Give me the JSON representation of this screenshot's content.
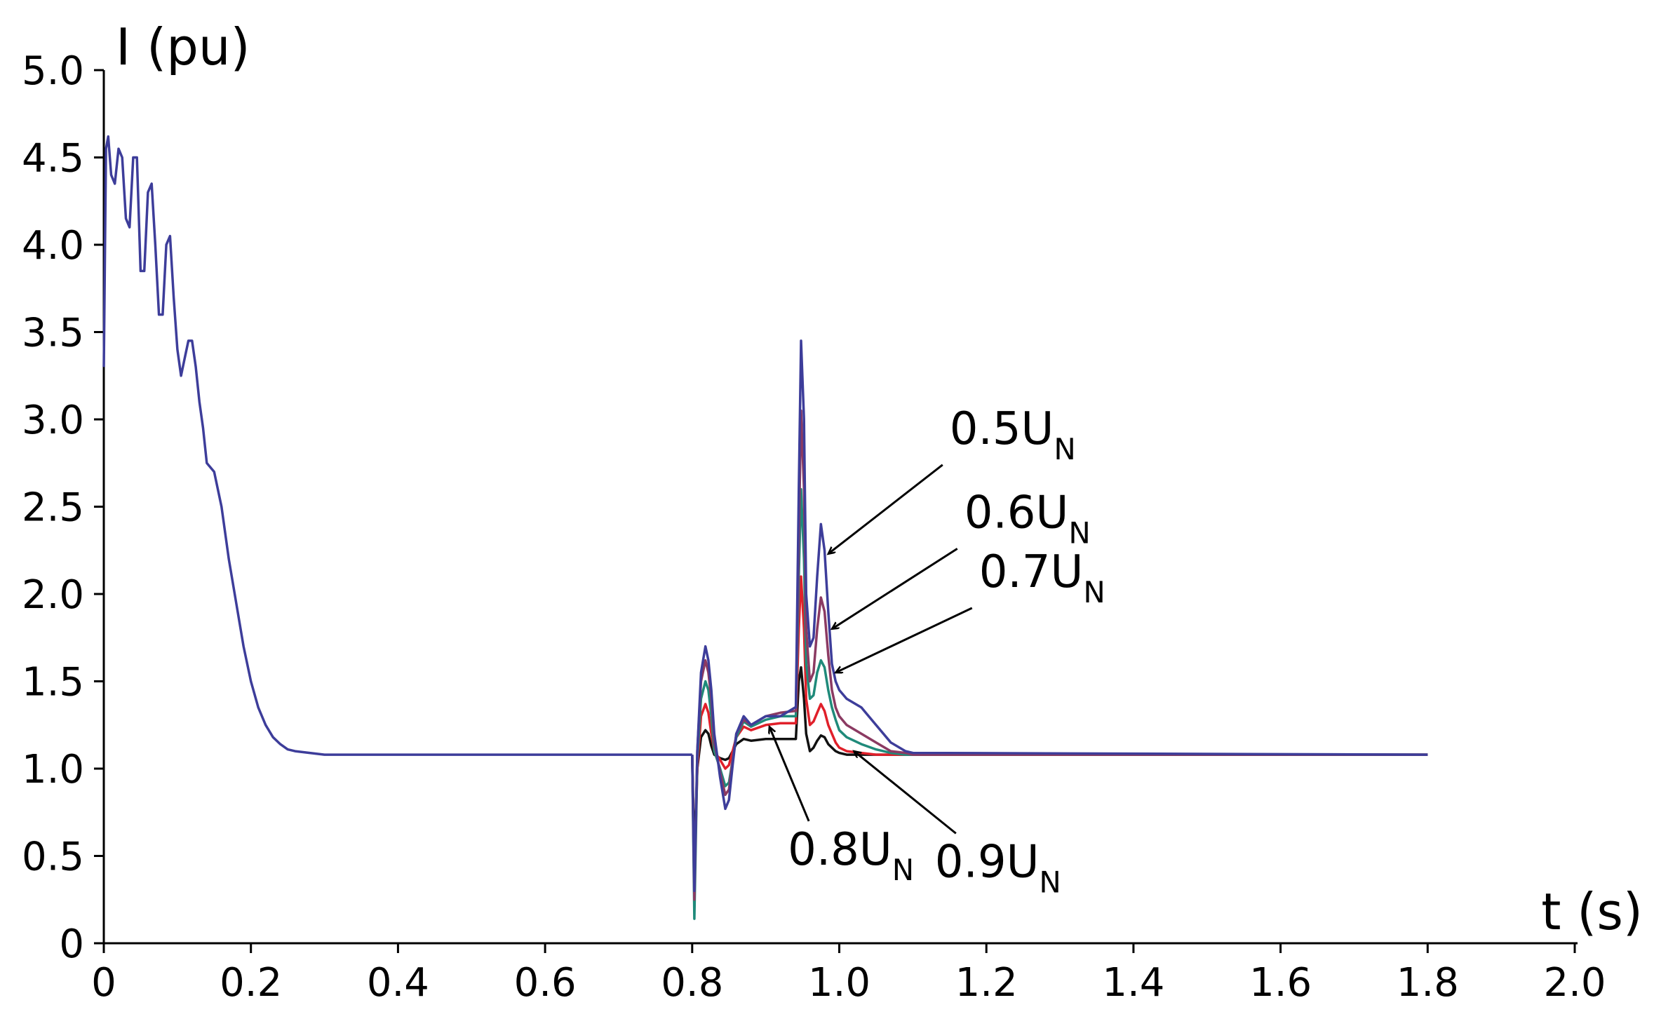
{
  "chart_data": {
    "type": "line",
    "xlabel": "t (s)",
    "ylabel": "I (pu)",
    "xlim": [
      0,
      2.0
    ],
    "ylim": [
      0,
      5.0
    ],
    "x_ticks": [
      "0",
      "0.2",
      "0.4",
      "0.6",
      "0.8",
      "1.0",
      "1.2",
      "1.4",
      "1.6",
      "1.8",
      "2.0"
    ],
    "y_ticks": [
      "0",
      "0.5",
      "1.0",
      "1.5",
      "2.0",
      "2.5",
      "3.0",
      "3.5",
      "4.0",
      "4.5",
      "5.0"
    ],
    "grid": false,
    "shared_start": {
      "x": [
        0.0,
        0.003,
        0.006,
        0.01,
        0.015,
        0.02,
        0.025,
        0.03,
        0.035,
        0.04,
        0.045,
        0.05,
        0.055,
        0.06,
        0.065,
        0.07,
        0.075,
        0.08,
        0.085,
        0.09,
        0.095,
        0.1,
        0.105,
        0.11,
        0.115,
        0.12,
        0.125,
        0.13,
        0.135,
        0.14,
        0.15,
        0.16,
        0.17,
        0.18,
        0.19,
        0.2,
        0.21,
        0.22,
        0.23,
        0.24,
        0.25,
        0.26,
        0.28,
        0.3,
        0.32,
        0.8
      ],
      "y": [
        3.3,
        4.55,
        4.62,
        4.4,
        4.35,
        4.55,
        4.5,
        4.15,
        4.1,
        4.5,
        4.5,
        3.85,
        3.85,
        4.3,
        4.35,
        4.0,
        3.6,
        3.6,
        4.0,
        4.05,
        3.7,
        3.4,
        3.25,
        3.35,
        3.45,
        3.45,
        3.3,
        3.1,
        2.95,
        2.75,
        2.7,
        2.5,
        2.2,
        1.95,
        1.7,
        1.5,
        1.35,
        1.25,
        1.18,
        1.14,
        1.11,
        1.1,
        1.09,
        1.08,
        1.08,
        1.08
      ]
    },
    "series": [
      {
        "label": "0.5U_N",
        "color": "#3d3d9a",
        "x": [
          0.8,
          0.803,
          0.807,
          0.812,
          0.818,
          0.822,
          0.826,
          0.83,
          0.838,
          0.845,
          0.85,
          0.855,
          0.86,
          0.87,
          0.88,
          0.9,
          0.92,
          0.94,
          0.941,
          0.945,
          0.948,
          0.952,
          0.955,
          0.96,
          0.965,
          0.97,
          0.975,
          0.98,
          0.985,
          0.99,
          0.995,
          1.0,
          1.01,
          1.03,
          1.05,
          1.07,
          1.09,
          1.1,
          1.8
        ],
        "y": [
          1.08,
          0.3,
          1.1,
          1.55,
          1.7,
          1.62,
          1.45,
          1.2,
          0.95,
          0.77,
          0.82,
          1.02,
          1.2,
          1.3,
          1.25,
          1.3,
          1.3,
          1.35,
          1.35,
          2.6,
          3.45,
          3.0,
          2.0,
          1.7,
          1.75,
          2.1,
          2.4,
          2.25,
          1.9,
          1.6,
          1.5,
          1.45,
          1.4,
          1.35,
          1.25,
          1.15,
          1.1,
          1.09,
          1.08
        ]
      },
      {
        "label": "0.6U_N",
        "color": "#8b3a62",
        "x": [
          0.8,
          0.803,
          0.807,
          0.812,
          0.818,
          0.822,
          0.826,
          0.83,
          0.838,
          0.845,
          0.85,
          0.855,
          0.86,
          0.87,
          0.88,
          0.9,
          0.92,
          0.94,
          0.941,
          0.945,
          0.948,
          0.952,
          0.955,
          0.96,
          0.965,
          0.97,
          0.975,
          0.98,
          0.985,
          0.99,
          0.995,
          1.0,
          1.01,
          1.03,
          1.05,
          1.07,
          1.09,
          1.1,
          1.8
        ],
        "y": [
          1.08,
          0.25,
          1.1,
          1.5,
          1.62,
          1.55,
          1.4,
          1.15,
          0.98,
          0.85,
          0.88,
          1.05,
          1.2,
          1.28,
          1.25,
          1.3,
          1.32,
          1.33,
          1.33,
          2.3,
          3.05,
          2.6,
          1.8,
          1.5,
          1.55,
          1.8,
          1.98,
          1.9,
          1.65,
          1.45,
          1.35,
          1.3,
          1.25,
          1.2,
          1.15,
          1.1,
          1.09,
          1.08,
          1.08
        ]
      },
      {
        "label": "0.7U_N",
        "color": "#1f8a7a",
        "x": [
          0.8,
          0.803,
          0.807,
          0.812,
          0.818,
          0.822,
          0.826,
          0.83,
          0.838,
          0.845,
          0.85,
          0.855,
          0.86,
          0.87,
          0.88,
          0.9,
          0.92,
          0.94,
          0.941,
          0.945,
          0.948,
          0.952,
          0.955,
          0.96,
          0.965,
          0.97,
          0.975,
          0.98,
          0.985,
          0.99,
          0.995,
          1.0,
          1.01,
          1.03,
          1.05,
          1.07,
          1.09,
          1.1,
          1.8
        ],
        "y": [
          1.08,
          0.14,
          1.05,
          1.4,
          1.5,
          1.45,
          1.3,
          1.1,
          1.0,
          0.9,
          0.92,
          1.05,
          1.18,
          1.27,
          1.24,
          1.28,
          1.3,
          1.3,
          1.3,
          2.1,
          2.6,
          2.2,
          1.6,
          1.4,
          1.42,
          1.55,
          1.62,
          1.58,
          1.45,
          1.35,
          1.28,
          1.22,
          1.18,
          1.14,
          1.11,
          1.09,
          1.08,
          1.08,
          1.08
        ]
      },
      {
        "label": "0.8U_N",
        "color": "#e0202a",
        "x": [
          0.8,
          0.803,
          0.807,
          0.812,
          0.818,
          0.822,
          0.826,
          0.83,
          0.838,
          0.845,
          0.85,
          0.855,
          0.86,
          0.87,
          0.88,
          0.9,
          0.92,
          0.94,
          0.941,
          0.945,
          0.948,
          0.952,
          0.955,
          0.96,
          0.965,
          0.97,
          0.975,
          0.98,
          0.985,
          0.99,
          0.995,
          1.0,
          1.01,
          1.03,
          1.05,
          1.07,
          1.09,
          1.1,
          1.8
        ],
        "y": [
          1.08,
          0.35,
          1.0,
          1.3,
          1.37,
          1.32,
          1.2,
          1.1,
          1.05,
          1.0,
          1.02,
          1.1,
          1.18,
          1.24,
          1.22,
          1.25,
          1.26,
          1.26,
          1.26,
          1.8,
          2.1,
          1.8,
          1.4,
          1.25,
          1.27,
          1.32,
          1.37,
          1.33,
          1.25,
          1.2,
          1.15,
          1.12,
          1.1,
          1.09,
          1.08,
          1.08,
          1.08,
          1.08,
          1.08
        ]
      },
      {
        "label": "0.9U_N",
        "color": "#111111",
        "x": [
          0.8,
          0.803,
          0.807,
          0.812,
          0.818,
          0.822,
          0.826,
          0.83,
          0.838,
          0.845,
          0.85,
          0.855,
          0.86,
          0.87,
          0.88,
          0.9,
          0.92,
          0.94,
          0.941,
          0.945,
          0.948,
          0.952,
          0.955,
          0.96,
          0.965,
          0.97,
          0.975,
          0.98,
          0.985,
          0.99,
          0.995,
          1.0,
          1.01,
          1.03,
          1.05,
          1.07,
          1.09,
          1.1,
          1.8
        ],
        "y": [
          1.08,
          0.5,
          1.0,
          1.18,
          1.22,
          1.2,
          1.13,
          1.08,
          1.06,
          1.05,
          1.06,
          1.1,
          1.14,
          1.17,
          1.16,
          1.17,
          1.17,
          1.17,
          1.17,
          1.5,
          1.58,
          1.4,
          1.2,
          1.1,
          1.12,
          1.16,
          1.19,
          1.18,
          1.14,
          1.12,
          1.1,
          1.09,
          1.08,
          1.08,
          1.08,
          1.08,
          1.08,
          1.08,
          1.08
        ]
      }
    ],
    "annotations": [
      {
        "main": "0.5U",
        "sub": "N",
        "x": 1.15,
        "y": 2.86,
        "arrow_to_x": 0.985,
        "arrow_to_y": 2.23
      },
      {
        "main": "0.6U",
        "sub": "N",
        "x": 1.17,
        "y": 2.38,
        "arrow_to_x": 0.99,
        "arrow_to_y": 1.8
      },
      {
        "main": "0.7U",
        "sub": "N",
        "x": 1.19,
        "y": 2.04,
        "arrow_to_x": 0.995,
        "arrow_to_y": 1.55
      },
      {
        "main": "0.8U",
        "sub": "N",
        "x": 0.93,
        "y": 0.45,
        "arrow_to_x": 0.905,
        "arrow_to_y": 1.24
      },
      {
        "main": "0.9U",
        "sub": "N",
        "x": 1.13,
        "y": 0.38,
        "arrow_to_x": 1.02,
        "arrow_to_y": 1.1
      }
    ]
  }
}
